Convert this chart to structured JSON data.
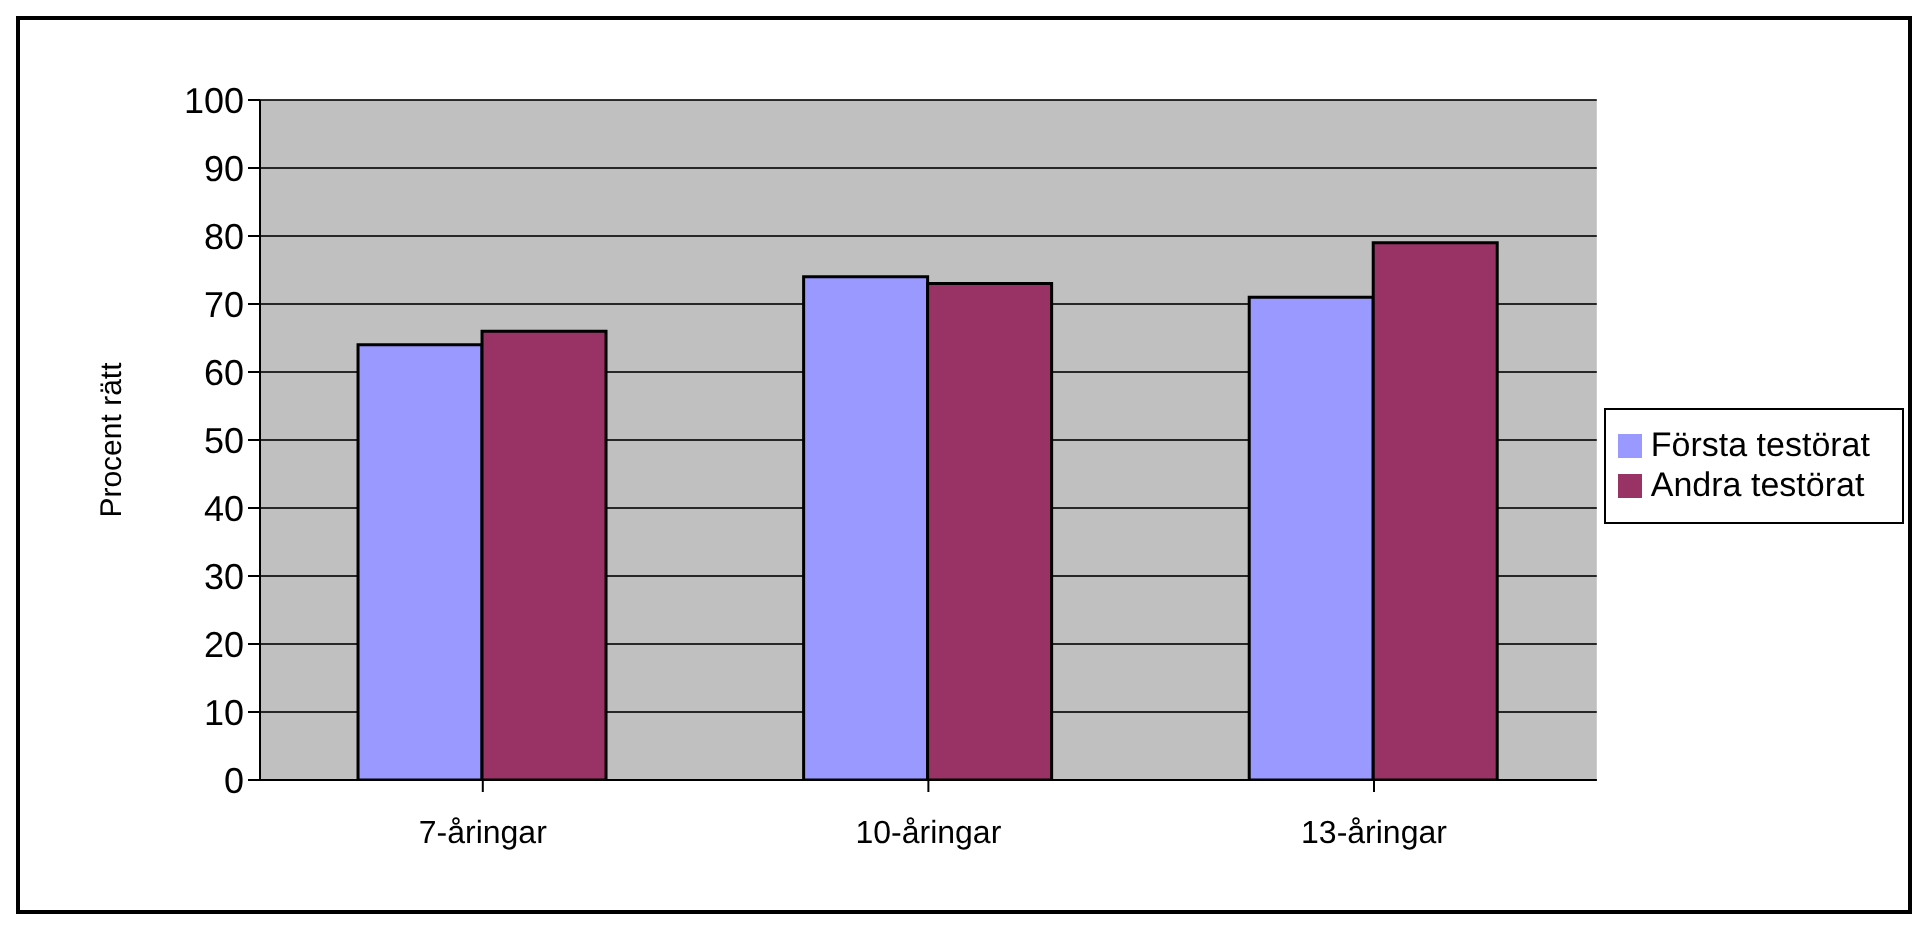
{
  "chart_data": {
    "type": "bar",
    "ylabel": "Procent rätt",
    "categories": [
      "7-åringar",
      "10-åringar",
      "13-åringar"
    ],
    "series": [
      {
        "name": "Första testörat",
        "color": "#9999ff",
        "values": [
          64,
          74,
          71
        ]
      },
      {
        "name": "Andra testörat",
        "color": "#993366",
        "values": [
          66,
          73,
          79
        ]
      }
    ],
    "ylim": [
      0,
      100
    ],
    "yticks": [
      0,
      10,
      20,
      30,
      40,
      50,
      60,
      70,
      80,
      90,
      100
    ],
    "grid": "y",
    "legend": "right"
  }
}
